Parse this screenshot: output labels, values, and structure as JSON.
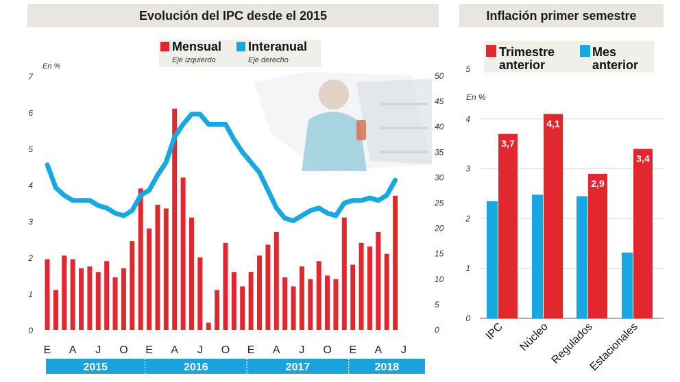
{
  "headers": {
    "left_title": "Evolución del IPC desde el 2015",
    "right_title": "Inflación primer semestre"
  },
  "colors": {
    "red": "#e2272f",
    "blue": "#16a9e1",
    "band": "#1aa3dc",
    "header_bg": "#e9e6df"
  },
  "chart_data": [
    {
      "type": "bar",
      "title": "Evolución del IPC desde el 2015",
      "ylabel": "En %",
      "ylim": [
        0,
        7
      ],
      "y2lim": [
        0,
        50
      ],
      "yticks": [
        "0",
        "1",
        "2",
        "3",
        "4",
        "5",
        "6",
        "7"
      ],
      "y2ticks": [
        "0",
        "5",
        "10",
        "15",
        "20",
        "25",
        "30",
        "35",
        "40",
        "45",
        "50"
      ],
      "month_labels": [
        "E",
        "A",
        "J",
        "O",
        "E",
        "A",
        "J",
        "O",
        "E",
        "A",
        "J",
        "O",
        "E",
        "A",
        "J"
      ],
      "years": [
        "2015",
        "2016",
        "2017",
        "2018"
      ],
      "legend": [
        {
          "name": "Mensual",
          "note": "Eje izquierdo",
          "color": "#e2272f"
        },
        {
          "name": "Interanual",
          "note": "Eje derecho",
          "color": "#16a9e1"
        }
      ],
      "series": [
        {
          "name": "Mensual",
          "axis": "left",
          "values": [
            1.95,
            1.1,
            2.05,
            1.95,
            1.7,
            1.75,
            1.6,
            1.9,
            1.45,
            1.7,
            2.45,
            3.9,
            2.8,
            3.45,
            3.35,
            6.1,
            4.2,
            3.1,
            2.0,
            0.2,
            1.1,
            2.4,
            1.6,
            1.2,
            1.6,
            2.05,
            2.35,
            2.7,
            1.45,
            1.2,
            1.75,
            1.4,
            1.9,
            1.5,
            1.4,
            3.1,
            1.8,
            2.4,
            2.3,
            2.7,
            2.1,
            3.7
          ]
        },
        {
          "name": "Interanual",
          "axis": "right",
          "values": [
            32.5,
            28.0,
            26.5,
            25.5,
            25.5,
            25.5,
            24.5,
            24.0,
            23.0,
            22.5,
            23.5,
            26.5,
            27.5,
            30.5,
            33.0,
            38.0,
            40.5,
            42.5,
            42.5,
            40.5,
            40.5,
            40.5,
            37.5,
            35.0,
            33.0,
            31.0,
            27.5,
            24.0,
            22.0,
            21.5,
            22.5,
            23.5,
            24.0,
            23.0,
            22.5,
            25.0,
            25.5,
            25.5,
            26.0,
            25.5,
            26.5,
            29.5
          ]
        }
      ]
    },
    {
      "type": "bar",
      "title": "Inflación primer semestre",
      "ylabel": "En %",
      "ylim": [
        0,
        5
      ],
      "yticks": [
        "0",
        "1",
        "2",
        "3",
        "4",
        "5"
      ],
      "categories": [
        "IPC",
        "Núcleo",
        "Regulados",
        "Estacionales"
      ],
      "legend": [
        {
          "name": "Trimestre anterior",
          "color": "#e2272f"
        },
        {
          "name": "Mes anterior",
          "color": "#16a9e1"
        }
      ],
      "series": [
        {
          "name": "Trimestre anterior",
          "values": [
            3.7,
            4.1,
            2.9,
            3.4
          ],
          "labels": [
            "3,7",
            "4,1",
            "2,9",
            "3,4"
          ]
        },
        {
          "name": "Mes anterior",
          "values": [
            2.35,
            2.48,
            2.45,
            1.32
          ]
        }
      ]
    }
  ]
}
